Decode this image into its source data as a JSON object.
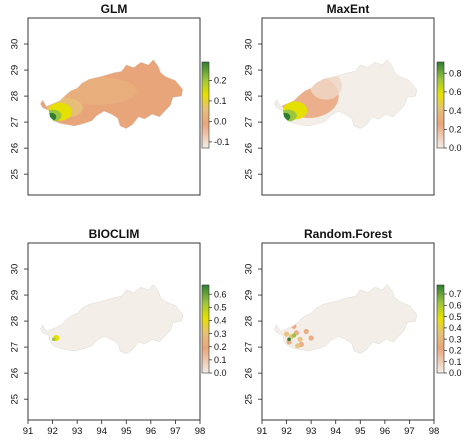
{
  "chart_data": [
    {
      "type": "heatmap",
      "title": "GLM",
      "x_ticks": [
        "91",
        "92",
        "93",
        "94",
        "95",
        "96",
        "97",
        "98"
      ],
      "y_ticks": [
        "25",
        "26",
        "27",
        "28",
        "29",
        "30"
      ],
      "xlim": [
        91,
        98
      ],
      "ylim": [
        24.2,
        31.0
      ],
      "legend": {
        "labels": [
          "0.2",
          "0.1",
          "0.0",
          "-0.1"
        ],
        "values": [
          0.2,
          0.1,
          0.0,
          -0.1
        ],
        "range": [
          -0.13,
          0.29
        ],
        "placement": "right"
      },
      "map_fill": "mostly low (~0.0–0.1, tan/orange), high (~0.2–0.29, green) in far southwest",
      "colors": [
        "#2f7d32",
        "#9bc53d",
        "#e6e000",
        "#e7c07a",
        "#e9a57a",
        "#f4eee8"
      ]
    },
    {
      "type": "heatmap",
      "title": "MaxEnt",
      "x_ticks": [
        "91",
        "92",
        "93",
        "94",
        "95",
        "96",
        "97",
        "98"
      ],
      "y_ticks": [
        "25",
        "26",
        "27",
        "28",
        "29",
        "30"
      ],
      "xlim": [
        91,
        98
      ],
      "ylim": [
        24.2,
        31.0
      ],
      "legend": {
        "labels": [
          "0.8",
          "0.6",
          "0.4",
          "0.2",
          "0.0"
        ],
        "values": [
          0.8,
          0.6,
          0.4,
          0.2,
          0.0
        ],
        "range": [
          0.0,
          0.92
        ],
        "placement": "right"
      },
      "map_fill": "west ~0.2–0.4 (tan), east ~0.0 (light grey), southwest high (green)",
      "colors": [
        "#2f7d32",
        "#9bc53d",
        "#e6e000",
        "#e7c07a",
        "#e9a57a",
        "#f4eee8"
      ]
    },
    {
      "type": "heatmap",
      "title": "BIOCLIM",
      "x_ticks": [
        "91",
        "92",
        "93",
        "94",
        "95",
        "96",
        "97",
        "98"
      ],
      "y_ticks": [
        "25",
        "26",
        "27",
        "28",
        "29",
        "30"
      ],
      "xlim": [
        91,
        98
      ],
      "ylim": [
        24.2,
        31.0
      ],
      "legend": {
        "labels": [
          "0.6",
          "0.5",
          "0.4",
          "0.3",
          "0.2",
          "0.1",
          "0.0"
        ],
        "values": [
          0.6,
          0.5,
          0.4,
          0.3,
          0.2,
          0.1,
          0.0
        ],
        "range": [
          0.0,
          0.67
        ],
        "placement": "right"
      },
      "map_fill": "almost entirely ~0.0 (light grey), tiny yellow patch near 92.2E 27.3N",
      "colors": [
        "#2f7d32",
        "#9bc53d",
        "#e6e000",
        "#e7c07a",
        "#e9a57a",
        "#f4eee8"
      ]
    },
    {
      "type": "heatmap",
      "title": "Random.Forest",
      "x_ticks": [
        "91",
        "92",
        "93",
        "94",
        "95",
        "96",
        "97",
        "98"
      ],
      "y_ticks": [
        "25",
        "26",
        "27",
        "28",
        "29",
        "30"
      ],
      "xlim": [
        91,
        98
      ],
      "ylim": [
        24.2,
        31.0
      ],
      "legend": {
        "labels": [
          "0.7",
          "0.6",
          "0.5",
          "0.4",
          "0.3",
          "0.2",
          "0.1",
          "0.0"
        ],
        "values": [
          0.7,
          0.6,
          0.5,
          0.4,
          0.3,
          0.2,
          0.1,
          0.0
        ],
        "range": [
          0.0,
          0.78
        ],
        "placement": "right"
      },
      "map_fill": "mostly ~0.0 (light grey), scattered tan and a few green cells in southwest",
      "colors": [
        "#2f7d32",
        "#9bc53d",
        "#e6e000",
        "#e7c07a",
        "#e9a57a",
        "#f4eee8"
      ]
    }
  ]
}
